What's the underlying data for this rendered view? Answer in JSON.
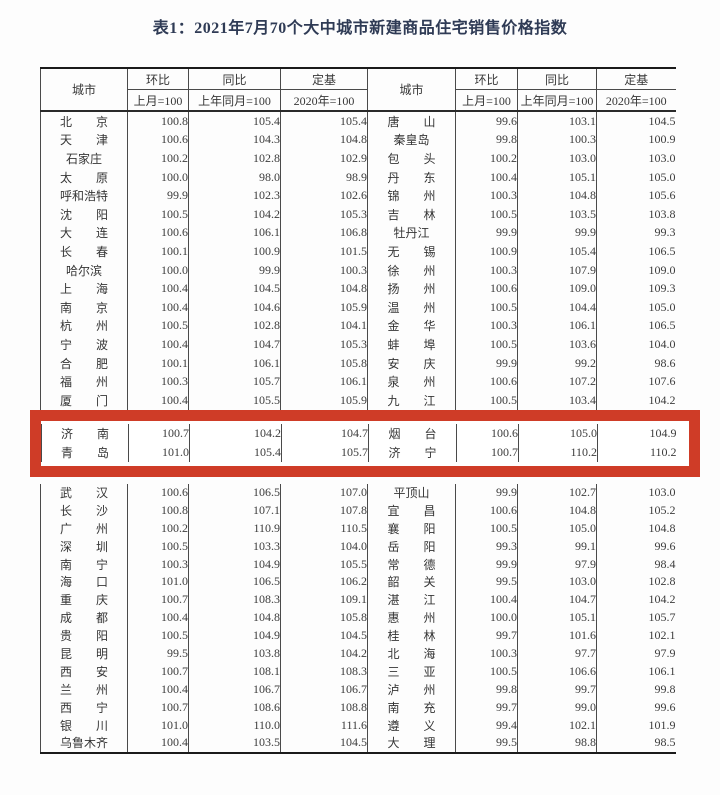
{
  "title": "表1：2021年7月70个大中城市新建商品住宅销售价格指数",
  "highlight_color": "#cf3c27",
  "columns": {
    "city": "城市",
    "mom": "环比",
    "mom_sub": "上月=100",
    "yoy": "同比",
    "yoy_sub": "上年同月=100",
    "base": "定基",
    "base_sub": "2020年=100"
  },
  "rows": {
    "top_left": [
      [
        "北京",
        "100.8",
        "105.4",
        "105.4"
      ],
      [
        "天津",
        "100.6",
        "104.3",
        "104.8"
      ],
      [
        "石家庄",
        "100.2",
        "102.8",
        "102.9"
      ],
      [
        "太原",
        "100.0",
        "98.0",
        "98.9"
      ],
      [
        "呼和浩特",
        "99.9",
        "102.3",
        "102.6"
      ],
      [
        "沈阳",
        "100.5",
        "104.2",
        "105.3"
      ],
      [
        "大连",
        "100.6",
        "106.1",
        "106.8"
      ],
      [
        "长春",
        "100.1",
        "100.9",
        "101.5"
      ],
      [
        "哈尔滨",
        "100.0",
        "99.9",
        "100.3"
      ],
      [
        "上海",
        "100.4",
        "104.5",
        "104.8"
      ],
      [
        "南京",
        "100.4",
        "104.6",
        "105.9"
      ],
      [
        "杭州",
        "100.5",
        "102.8",
        "104.1"
      ],
      [
        "宁波",
        "100.4",
        "104.7",
        "105.3"
      ],
      [
        "合肥",
        "100.1",
        "106.1",
        "105.8"
      ],
      [
        "福州",
        "100.3",
        "105.7",
        "106.1"
      ],
      [
        "厦门",
        "100.4",
        "105.5",
        "105.9"
      ]
    ],
    "top_right": [
      [
        "唐山",
        "99.6",
        "103.1",
        "104.5"
      ],
      [
        "秦皇岛",
        "99.8",
        "100.3",
        "100.9"
      ],
      [
        "包头",
        "100.2",
        "103.0",
        "103.0"
      ],
      [
        "丹东",
        "100.4",
        "105.1",
        "105.0"
      ],
      [
        "锦州",
        "100.3",
        "104.8",
        "105.6"
      ],
      [
        "吉林",
        "100.5",
        "103.5",
        "103.8"
      ],
      [
        "牡丹江",
        "99.9",
        "99.9",
        "99.3"
      ],
      [
        "无锡",
        "100.9",
        "105.4",
        "106.5"
      ],
      [
        "徐州",
        "100.3",
        "107.9",
        "109.0"
      ],
      [
        "扬州",
        "100.6",
        "109.0",
        "109.3"
      ],
      [
        "温州",
        "100.5",
        "104.4",
        "105.0"
      ],
      [
        "金华",
        "100.3",
        "106.1",
        "106.5"
      ],
      [
        "蚌埠",
        "100.5",
        "103.6",
        "104.0"
      ],
      [
        "安庆",
        "99.9",
        "99.2",
        "98.6"
      ],
      [
        "泉州",
        "100.6",
        "107.2",
        "107.6"
      ],
      [
        "九江",
        "100.5",
        "103.4",
        "104.2"
      ]
    ],
    "highlight_left": [
      [
        "济南",
        "100.7",
        "104.2",
        "104.7"
      ],
      [
        "青岛",
        "101.0",
        "105.4",
        "105.7"
      ]
    ],
    "highlight_right": [
      [
        "烟台",
        "100.6",
        "105.0",
        "104.9"
      ],
      [
        "济宁",
        "100.7",
        "110.2",
        "110.2"
      ]
    ],
    "bottom_left": [
      [
        "武汉",
        "100.6",
        "106.5",
        "107.0"
      ],
      [
        "长沙",
        "100.8",
        "107.1",
        "107.8"
      ],
      [
        "广州",
        "100.2",
        "110.9",
        "110.5"
      ],
      [
        "深圳",
        "100.5",
        "103.3",
        "104.0"
      ],
      [
        "南宁",
        "100.3",
        "104.9",
        "105.5"
      ],
      [
        "海口",
        "101.0",
        "106.5",
        "106.2"
      ],
      [
        "重庆",
        "100.7",
        "108.3",
        "109.1"
      ],
      [
        "成都",
        "100.4",
        "104.8",
        "105.8"
      ],
      [
        "贵阳",
        "100.5",
        "104.9",
        "104.5"
      ],
      [
        "昆明",
        "99.5",
        "103.8",
        "104.2"
      ],
      [
        "西安",
        "100.7",
        "108.1",
        "108.3"
      ],
      [
        "兰州",
        "100.4",
        "106.7",
        "106.7"
      ],
      [
        "西宁",
        "100.7",
        "108.6",
        "108.8"
      ],
      [
        "银川",
        "101.0",
        "110.0",
        "111.6"
      ],
      [
        "乌鲁木齐",
        "100.4",
        "103.5",
        "104.5"
      ]
    ],
    "bottom_right": [
      [
        "平顶山",
        "99.9",
        "102.7",
        "103.0"
      ],
      [
        "宜昌",
        "100.6",
        "104.8",
        "105.2"
      ],
      [
        "襄阳",
        "100.5",
        "105.0",
        "104.8"
      ],
      [
        "岳阳",
        "99.3",
        "99.1",
        "99.6"
      ],
      [
        "常德",
        "99.9",
        "97.9",
        "98.4"
      ],
      [
        "韶关",
        "99.5",
        "103.0",
        "102.8"
      ],
      [
        "湛江",
        "100.4",
        "104.7",
        "104.2"
      ],
      [
        "惠州",
        "100.0",
        "105.1",
        "105.7"
      ],
      [
        "桂林",
        "99.7",
        "101.6",
        "102.1"
      ],
      [
        "北海",
        "100.3",
        "97.7",
        "97.9"
      ],
      [
        "三亚",
        "100.5",
        "106.6",
        "106.1"
      ],
      [
        "泸州",
        "99.8",
        "99.7",
        "99.8"
      ],
      [
        "南充",
        "99.7",
        "99.0",
        "99.6"
      ],
      [
        "遵义",
        "99.4",
        "102.1",
        "101.9"
      ],
      [
        "大理",
        "99.5",
        "98.8",
        "98.5"
      ]
    ]
  }
}
